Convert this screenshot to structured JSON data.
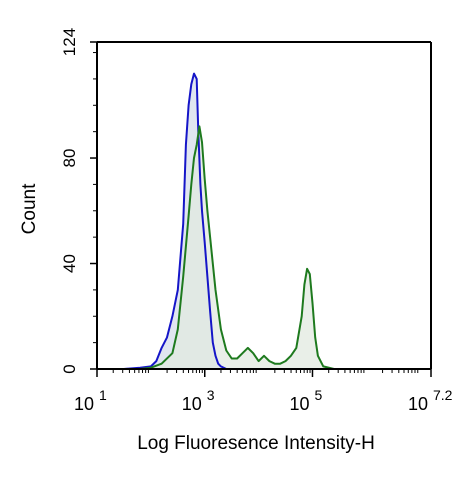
{
  "chart_data": {
    "type": "area",
    "title": "",
    "xlabel": "Log Fluoresence Intensity-H",
    "ylabel": "Count",
    "xscale": "log10",
    "xlim_log10": [
      1,
      7.2
    ],
    "ylim": [
      0,
      124
    ],
    "grid": false,
    "legend": "none",
    "x_ticks": [
      {
        "base": "10",
        "exp": "1",
        "value_log10": 1
      },
      {
        "base": "10",
        "exp": "3",
        "value_log10": 3
      },
      {
        "base": "10",
        "exp": "5",
        "value_log10": 5
      },
      {
        "base": "10",
        "exp": "7.2",
        "value_log10": 7.2
      }
    ],
    "y_ticks": [
      "0",
      "40",
      "80",
      "124"
    ],
    "y_tick_values": [
      0,
      40,
      80,
      124
    ],
    "series": [
      {
        "color": "#1515c8",
        "fill": "#dde3ee",
        "x_log10": [
          1.0,
          1.5,
          1.8,
          2.0,
          2.1,
          2.2,
          2.3,
          2.4,
          2.5,
          2.6,
          2.65,
          2.7,
          2.75,
          2.8,
          2.85,
          2.88,
          2.92,
          2.95,
          3.0,
          3.05,
          3.1,
          3.15,
          3.2,
          3.25,
          3.3,
          3.4,
          3.5,
          3.6,
          4.0,
          5.0,
          7.2
        ],
        "y": [
          0,
          0,
          0.5,
          1,
          3,
          8,
          12,
          20,
          30,
          55,
          85,
          100,
          108,
          112,
          110,
          90,
          70,
          60,
          48,
          35,
          22,
          10,
          5,
          2,
          1,
          0,
          0,
          0,
          0,
          0,
          0
        ]
      },
      {
        "color": "#1e7a1e",
        "fill": "#e2eae0",
        "x_log10": [
          1.0,
          1.8,
          2.0,
          2.2,
          2.4,
          2.5,
          2.6,
          2.7,
          2.75,
          2.8,
          2.85,
          2.9,
          2.95,
          3.0,
          3.05,
          3.1,
          3.15,
          3.2,
          3.3,
          3.4,
          3.5,
          3.6,
          3.7,
          3.8,
          3.9,
          4.0,
          4.1,
          4.2,
          4.3,
          4.4,
          4.5,
          4.6,
          4.7,
          4.8,
          4.85,
          4.9,
          4.95,
          5.0,
          5.05,
          5.1,
          5.2,
          5.4,
          7.2
        ],
        "y": [
          0,
          0,
          0.5,
          2,
          6,
          15,
          35,
          58,
          70,
          80,
          85,
          92,
          86,
          72,
          60,
          50,
          40,
          30,
          15,
          7,
          4,
          4,
          6,
          8,
          6,
          3,
          5,
          3,
          2,
          2,
          3,
          5,
          8,
          20,
          32,
          38,
          36,
          25,
          12,
          5,
          1,
          0,
          0
        ]
      }
    ]
  }
}
